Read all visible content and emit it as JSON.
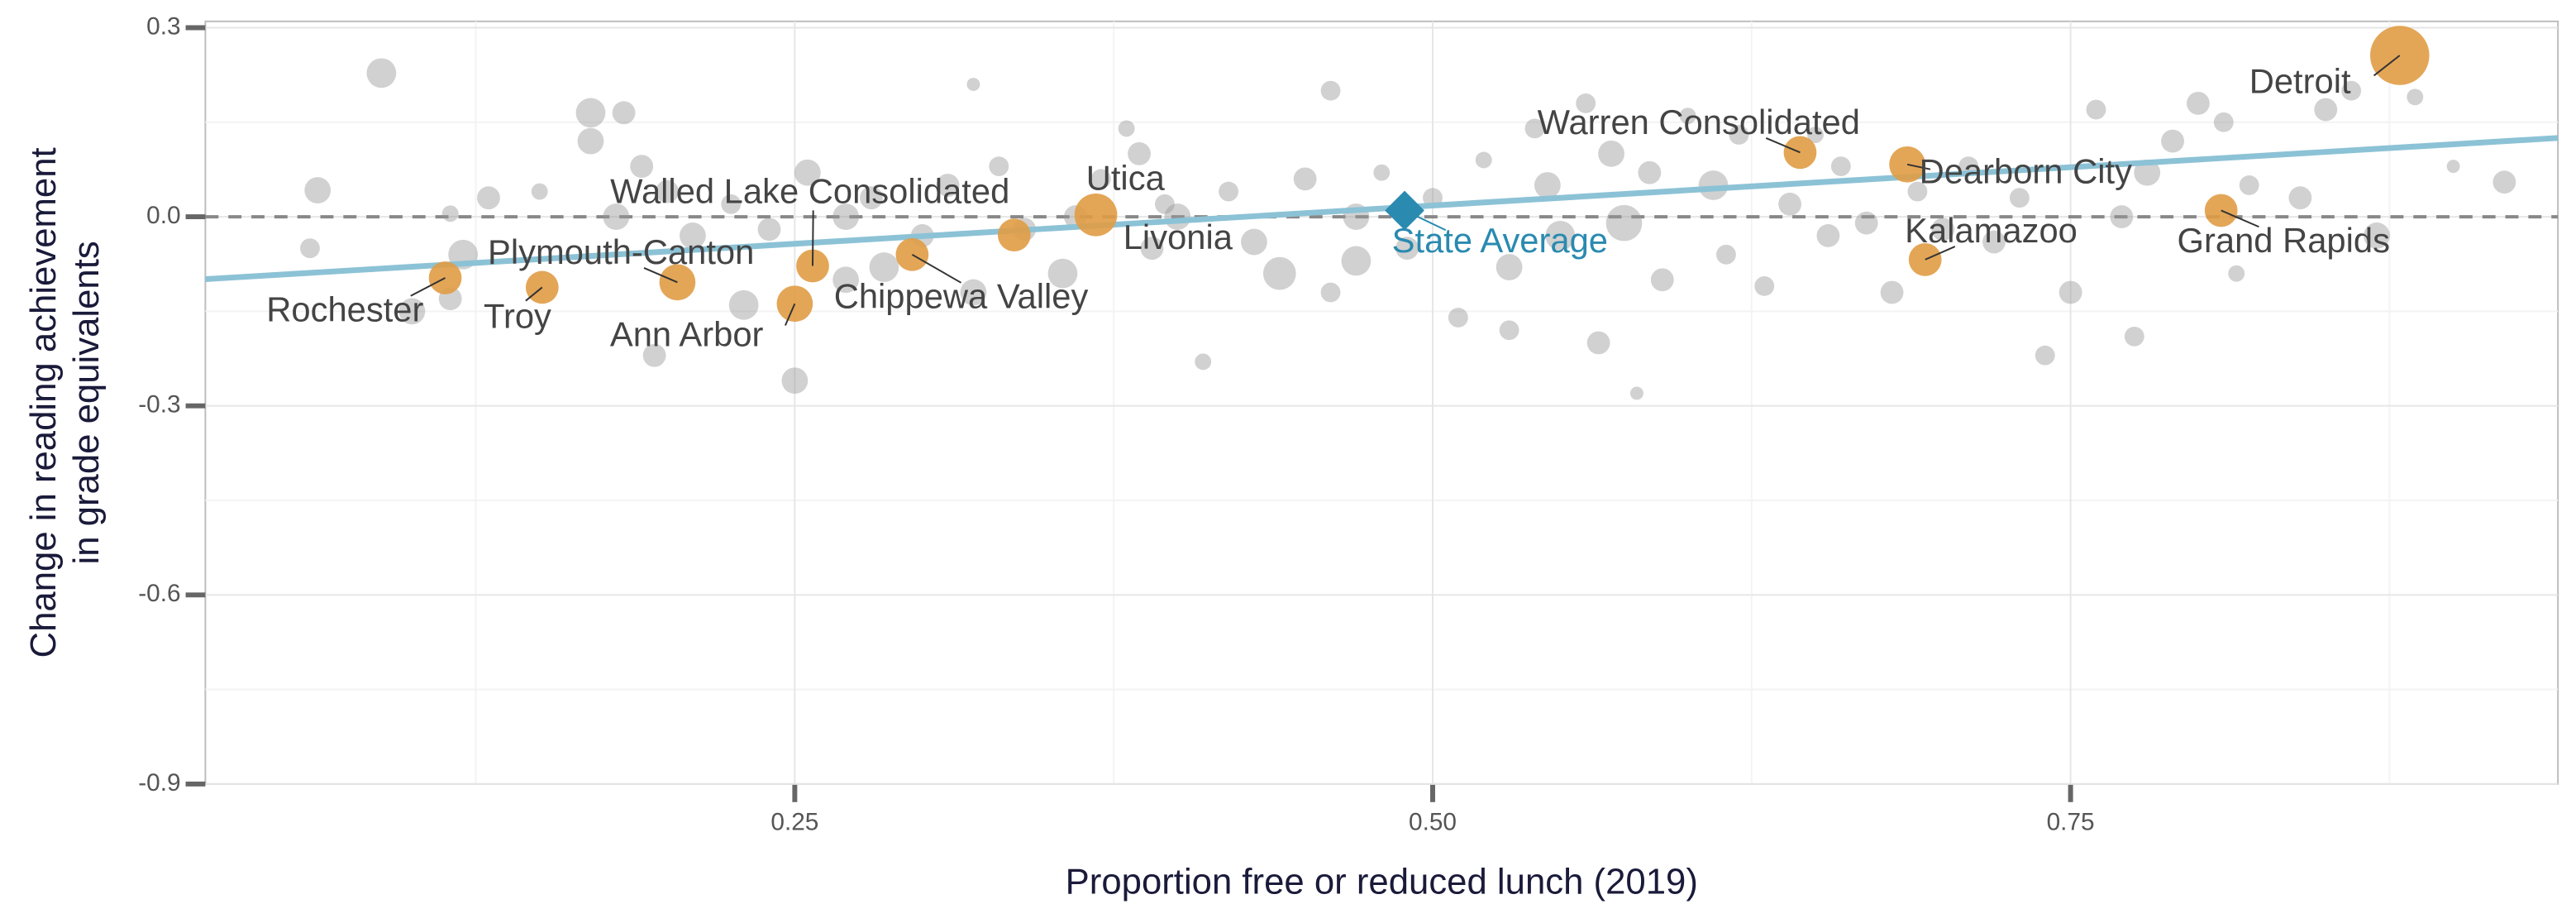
{
  "chart_data": {
    "type": "scatter",
    "xlabel": "Proportion free or reduced lunch (2019)",
    "ylabel": [
      "Change in reading  achievement",
      "in grade equivalents"
    ],
    "xlim": [
      0.019,
      0.941
    ],
    "ylim": [
      -0.9,
      0.31
    ],
    "xticks": [
      0.25,
      {
        "value": 0.5,
        "label": "0.50"
      },
      0.75
    ],
    "yticks": [
      0.3,
      {
        "value": 0,
        "label": "0.0"
      },
      -0.3,
      -0.6,
      -0.9
    ],
    "xminor": [
      0.125,
      0.375,
      0.625,
      0.875
    ],
    "yminor": [
      0.15,
      -0.15,
      -0.45,
      -0.75
    ],
    "grid": true,
    "hline": 0,
    "trend": {
      "color": "#8cc2d6",
      "x": [
        0.019,
        0.941
      ],
      "y": [
        -0.099,
        0.125
      ]
    },
    "background_points": {
      "color": "#9a9a9a",
      "x": [
        0.088,
        0.063,
        0.06,
        0.17,
        0.183,
        0.17,
        0.19,
        0.13,
        0.15,
        0.115,
        0.1,
        0.12,
        0.115,
        0.18,
        0.2,
        0.21,
        0.225,
        0.24,
        0.23,
        0.195,
        0.25,
        0.255,
        0.27,
        0.28,
        0.285,
        0.3,
        0.31,
        0.32,
        0.32,
        0.33,
        0.34,
        0.355,
        0.36,
        0.37,
        0.38,
        0.385,
        0.39,
        0.41,
        0.4,
        0.42,
        0.43,
        0.44,
        0.45,
        0.46,
        0.46,
        0.47,
        0.48,
        0.49,
        0.5,
        0.51,
        0.52,
        0.53,
        0.54,
        0.545,
        0.55,
        0.56,
        0.565,
        0.57,
        0.575,
        0.58,
        0.585,
        0.59,
        0.6,
        0.61,
        0.615,
        0.62,
        0.63,
        0.64,
        0.65,
        0.655,
        0.66,
        0.67,
        0.68,
        0.69,
        0.7,
        0.71,
        0.72,
        0.73,
        0.74,
        0.75,
        0.76,
        0.77,
        0.775,
        0.78,
        0.79,
        0.8,
        0.81,
        0.815,
        0.82,
        0.84,
        0.85,
        0.86,
        0.87,
        0.885,
        0.9,
        0.92,
        0.53,
        0.47,
        0.395,
        0.27
      ],
      "y": [
        0.228,
        0.042,
        -0.05,
        0.165,
        0.165,
        0.12,
        0.08,
        0.03,
        0.04,
        0.005,
        -0.15,
        -0.06,
        -0.13,
        0.0,
        0.04,
        -0.03,
        0.02,
        -0.02,
        -0.14,
        -0.22,
        -0.26,
        0.07,
        0.0,
        0.03,
        -0.08,
        -0.03,
        0.05,
        0.21,
        -0.12,
        0.08,
        -0.02,
        -0.09,
        0.0,
        0.06,
        0.14,
        0.1,
        -0.05,
        -0.23,
        0.0,
        0.04,
        -0.04,
        -0.09,
        0.06,
        0.2,
        -0.12,
        0.0,
        0.07,
        -0.05,
        0.03,
        -0.16,
        0.09,
        -0.08,
        0.14,
        0.05,
        -0.03,
        0.18,
        -0.2,
        0.1,
        -0.01,
        -0.28,
        0.07,
        -0.1,
        0.16,
        0.05,
        -0.06,
        0.13,
        -0.11,
        0.02,
        0.13,
        -0.03,
        0.08,
        -0.01,
        -0.12,
        0.04,
        -0.02,
        0.08,
        -0.04,
        0.03,
        -0.22,
        -0.12,
        0.17,
        0.0,
        -0.19,
        0.07,
        0.12,
        0.18,
        0.15,
        -0.09,
        0.05,
        0.03,
        0.17,
        0.2,
        -0.03,
        0.19,
        0.08,
        0.055,
        -0.18,
        -0.07,
        0.02,
        -0.1
      ],
      "sizes": [
        9,
        8,
        6,
        9,
        7,
        8,
        7,
        7,
        5,
        5,
        8,
        9,
        7,
        8,
        7,
        8,
        6,
        7,
        9,
        7,
        8,
        8,
        8,
        7,
        9,
        7,
        7,
        4,
        8,
        6,
        7,
        9,
        7,
        6,
        5,
        7,
        7,
        5,
        8,
        6,
        8,
        10,
        7,
        6,
        6,
        8,
        5,
        7,
        6,
        6,
        5,
        8,
        6,
        8,
        9,
        6,
        7,
        8,
        11,
        4,
        7,
        7,
        5,
        9,
        6,
        6,
        6,
        7,
        5,
        7,
        6,
        7,
        7,
        6,
        7,
        6,
        7,
        6,
        6,
        7,
        6,
        7,
        6,
        8,
        7,
        7,
        6,
        5,
        6,
        7,
        7,
        6,
        8,
        5,
        4,
        7,
        6,
        9,
        6,
        8
      ]
    },
    "highlighted": {
      "color": "#e09c45",
      "labels": [
        "Rochester",
        "Troy",
        "Plymouth-Canton",
        "Ann Arbor",
        "Walled Lake Consolidated",
        "Chippewa Valley",
        "Livonia",
        "Utica",
        "Warren Consolidated",
        "Dearborn City",
        "Kalamazoo",
        "Grand Rapids",
        "Detroit"
      ],
      "x": [
        0.113,
        0.151,
        0.204,
        0.25,
        0.257,
        0.296,
        0.336,
        0.368,
        0.644,
        0.686,
        0.693,
        0.809,
        0.879
      ],
      "y": [
        -0.097,
        -0.112,
        -0.104,
        -0.138,
        -0.078,
        -0.06,
        -0.029,
        0.003,
        0.102,
        0.083,
        -0.068,
        0.01,
        0.256
      ],
      "sizes": [
        10,
        10,
        11,
        11,
        10,
        10,
        10,
        13,
        10,
        11,
        10,
        10,
        18
      ]
    },
    "state_average": {
      "label": "State Average",
      "color": "#2a8ab0",
      "x": 0.489,
      "y": 0.01
    }
  }
}
